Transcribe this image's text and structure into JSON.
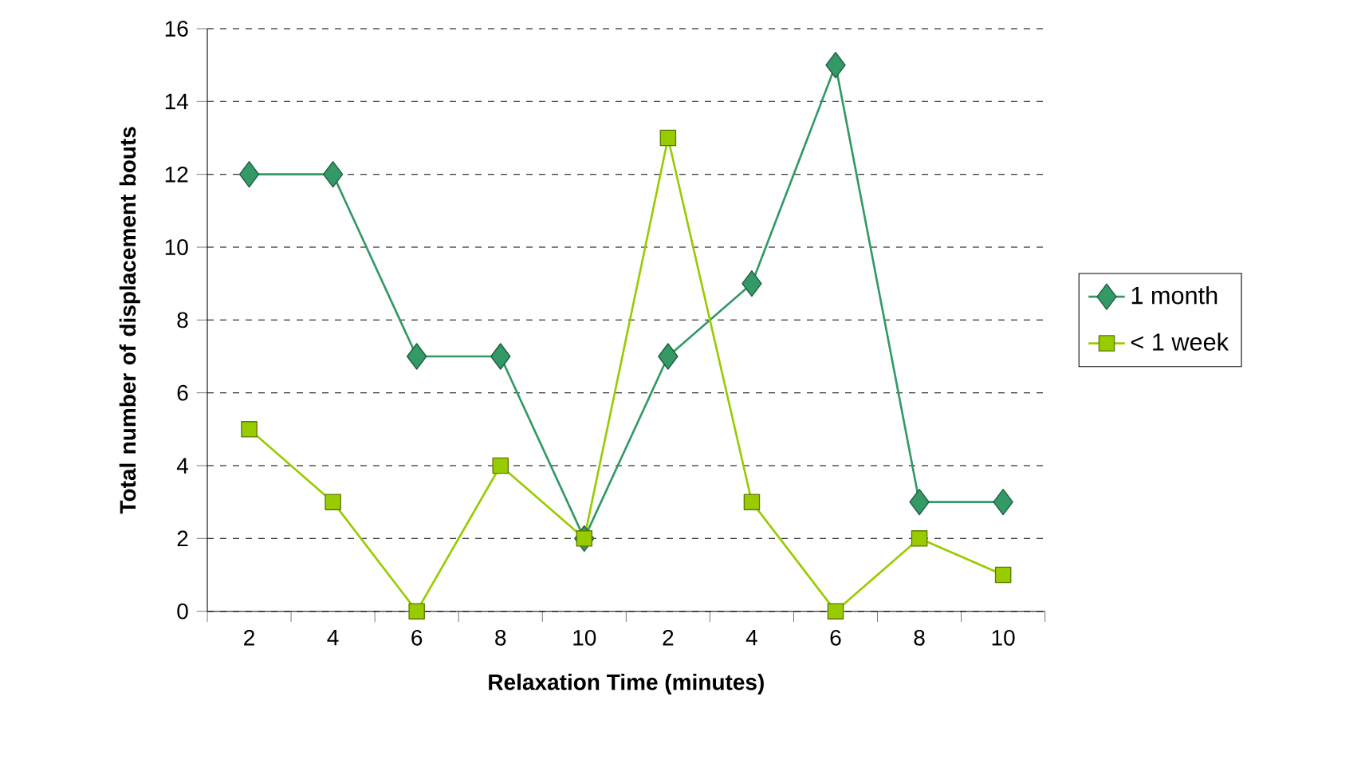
{
  "chart_data": {
    "type": "line",
    "xlabel": "Relaxation Time (minutes)",
    "ylabel": "Total number of displacement bouts",
    "categories": [
      "2",
      "4",
      "6",
      "8",
      "10",
      "2",
      "4",
      "6",
      "8",
      "10"
    ],
    "series": [
      {
        "name": "1 month",
        "color": "#339966",
        "marker": "diamond",
        "values": [
          12,
          12,
          7,
          7,
          2,
          7,
          9,
          15,
          3,
          3
        ]
      },
      {
        "name": "< 1 week",
        "color": "#99cc00",
        "marker": "square",
        "values": [
          5,
          3,
          0,
          4,
          2,
          13,
          3,
          0,
          2,
          1
        ]
      }
    ],
    "ylim": [
      0,
      16
    ],
    "yticks": [
      0,
      2,
      4,
      6,
      8,
      10,
      12,
      14,
      16
    ],
    "grid": "y",
    "legend": "right",
    "line_style": "solid"
  }
}
